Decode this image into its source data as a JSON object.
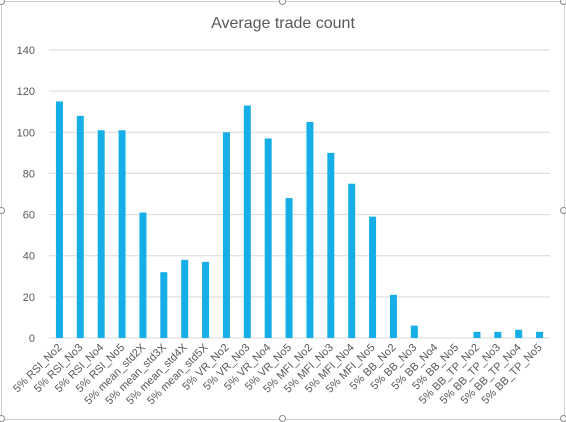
{
  "chart_data": {
    "type": "bar",
    "title": "Average trade count",
    "xlabel": "",
    "ylabel": "",
    "ylim": [
      0,
      140
    ],
    "yticks": [
      0,
      20,
      40,
      60,
      80,
      100,
      120,
      140
    ],
    "grid": true,
    "legend": "none",
    "bar_color": "#16AEE6",
    "categories": [
      "5% RSI_No2",
      "5% RSI_No3",
      "5% RSI_No4",
      "5% RSI_No5",
      "5% mean_std2X",
      "5% mean_std3X",
      "5% mean_std4X",
      "5% mean_std5X",
      "5% VR_No2",
      "5% VR_No3",
      "5% VR_No4",
      "5% VR_No5",
      "5% MFI_No2",
      "5% MFI_No3",
      "5% MFI_No4",
      "5% MFI_No5",
      "5% BB_No2",
      "5% BB_No3",
      "5% BB_No4",
      "5% BB_No5",
      "5% BB_TP_No2",
      "5% BB_TP_No3",
      "5% BB_TP_No4",
      "5% BB_TP_No5"
    ],
    "values": [
      115,
      108,
      101,
      101,
      61,
      32,
      38,
      37,
      100,
      113,
      97,
      68,
      105,
      90,
      75,
      59,
      21,
      6,
      0,
      0,
      3,
      3,
      4,
      3
    ]
  }
}
